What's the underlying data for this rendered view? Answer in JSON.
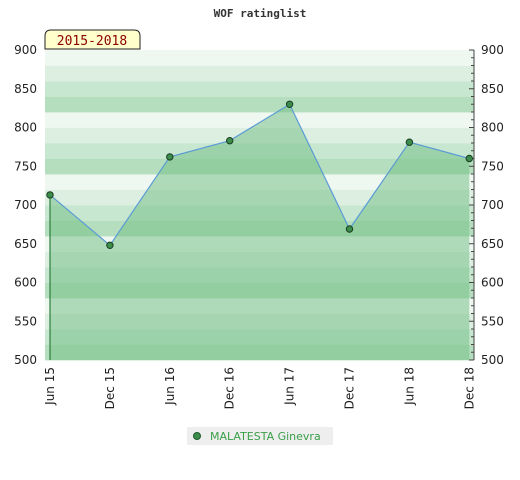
{
  "chart_data": {
    "type": "area",
    "title": "WOF ratinglist",
    "period_label": "2015-2018",
    "x": [
      "Jun 15",
      "Dec 15",
      "Jun 16",
      "Dec 16",
      "Jun 17",
      "Dec 17",
      "Jun 18",
      "Dec 18"
    ],
    "series": [
      {
        "name": "MALATESTA Ginevra",
        "values": [
          713,
          648,
          762,
          783,
          830,
          669,
          781,
          760
        ]
      }
    ],
    "ylim": [
      500,
      900
    ],
    "yticks": [
      500,
      550,
      600,
      650,
      700,
      750,
      800,
      850,
      900
    ],
    "y_axis_both_sides": true,
    "legend_position": "bottom-center",
    "colors": {
      "line": "#5b9bd5",
      "fill": "#6fbe82",
      "marker": "#3c8c4c",
      "legend_text": "#3aa04a"
    }
  }
}
